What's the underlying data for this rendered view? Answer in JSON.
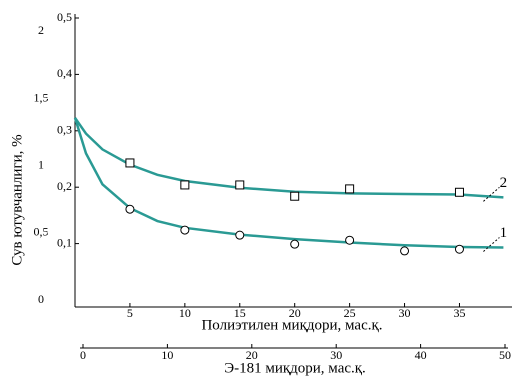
{
  "chart_data": {
    "type": "line",
    "y_label": "Сув ютувчанлиги, %",
    "x_label": "Полиэтилен миқдори, мас.қ.",
    "x2_label": "Э-181 миқдори, мас.қ.",
    "xlim": [
      0,
      39.6
    ],
    "xticks": [
      5,
      10,
      15,
      20,
      25,
      30,
      35
    ],
    "x2lim": [
      0,
      50
    ],
    "x2ticks": [
      0,
      10,
      20,
      30,
      40,
      50
    ],
    "ylim": [
      0,
      0.5
    ],
    "yticks": [
      {
        "value": 0.1,
        "label": "0,1"
      },
      {
        "value": 0.2,
        "label": "0,2"
      },
      {
        "value": 0.3,
        "label": "0,3"
      },
      {
        "value": 0.4,
        "label": "0,4"
      },
      {
        "value": 0.5,
        "label": "0,5"
      }
    ],
    "y2lim": [
      0,
      2.1
    ],
    "y2ticks": [
      0,
      {
        "value": 0.5,
        "label": "0,5"
      },
      1,
      {
        "value": 1.5,
        "label": "1,5"
      },
      2
    ],
    "color": "#2a9a94",
    "series": [
      {
        "name": "2",
        "marker": "square",
        "x": [
          5,
          10,
          15,
          20,
          25,
          35
        ],
        "values": [
          0.243,
          0.204,
          0.204,
          0.184,
          0.197,
          0.191
        ],
        "curve_x": [
          0,
          1,
          2.5,
          5,
          7.5,
          10,
          15,
          20,
          25,
          30,
          35,
          39
        ],
        "curve_values": [
          0.323,
          0.295,
          0.267,
          0.24,
          0.222,
          0.211,
          0.199,
          0.192,
          0.189,
          0.188,
          0.187,
          0.182
        ]
      },
      {
        "name": "1",
        "marker": "circle",
        "x": [
          5,
          10,
          15,
          20,
          25,
          30,
          35
        ],
        "values": [
          0.161,
          0.124,
          0.115,
          0.099,
          0.106,
          0.087,
          0.09
        ],
        "curve_x": [
          0,
          1,
          2.5,
          5,
          7.5,
          10,
          15,
          20,
          25,
          30,
          35,
          39
        ],
        "curve_values": [
          0.323,
          0.26,
          0.205,
          0.163,
          0.14,
          0.128,
          0.116,
          0.108,
          0.102,
          0.097,
          0.094,
          0.093
        ]
      }
    ]
  }
}
